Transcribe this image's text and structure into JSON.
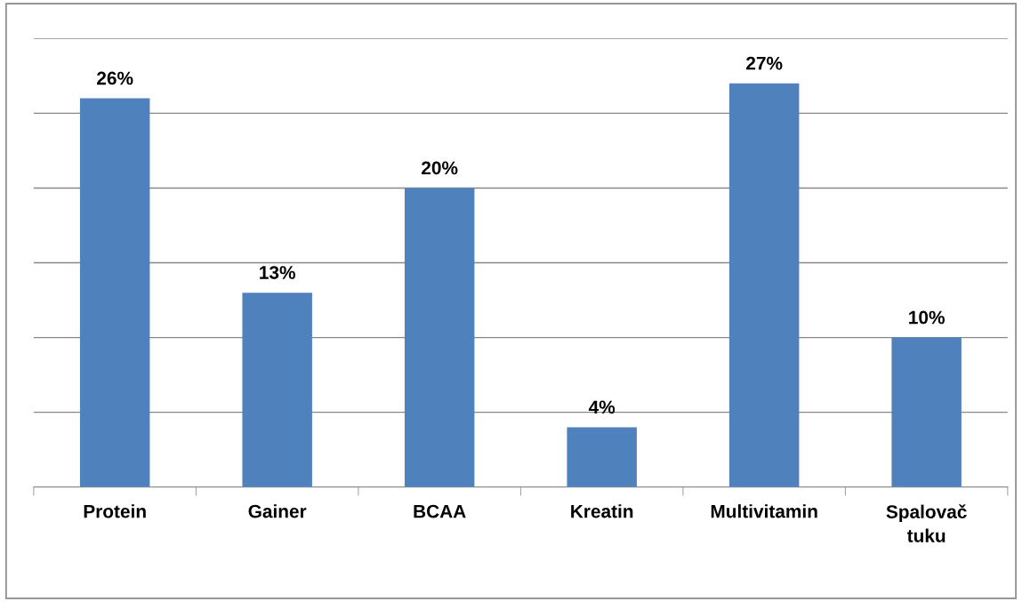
{
  "chart_data": {
    "type": "bar",
    "categories": [
      "Protein",
      "Gainer",
      "BCAA",
      "Kreatin",
      "Multivitamin",
      "Spalovač\ntuku"
    ],
    "values": [
      26,
      13,
      20,
      4,
      27,
      10
    ],
    "value_labels": [
      "26%",
      "13%",
      "20%",
      "4%",
      "27%",
      "10%"
    ],
    "color": "#4f81bd",
    "ylim": [
      0,
      30
    ],
    "yticks": [
      {
        "value": 0,
        "label": null
      },
      {
        "value": 5,
        "label": null
      },
      {
        "value": 10,
        "label": null
      },
      {
        "value": 15,
        "label": null
      },
      {
        "value": 20,
        "label": null
      },
      {
        "value": 25,
        "label": null
      },
      {
        "value": 30,
        "label": null
      }
    ],
    "tick_labels": "x",
    "grid": "y"
  }
}
